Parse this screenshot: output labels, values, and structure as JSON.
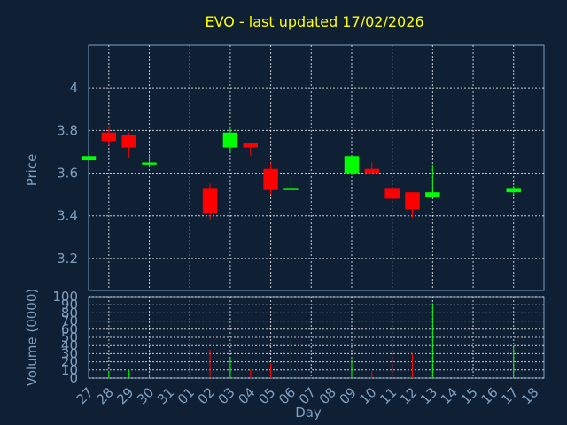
{
  "chart_data": [
    {
      "type": "candlestick",
      "title": "EVO - last updated 17/02/2026",
      "ylabel": "Price",
      "ylim": [
        3.05,
        4.2
      ],
      "yticks": [
        "3.2",
        "3.4",
        "3.6",
        "3.8",
        "4"
      ],
      "grid": true,
      "candles": [
        {
          "day": "27",
          "open": 3.66,
          "high": 3.68,
          "low": 3.66,
          "close": 3.68
        },
        {
          "day": "28",
          "open": 3.79,
          "high": 3.82,
          "low": 3.73,
          "close": 3.75
        },
        {
          "day": "29",
          "open": 3.78,
          "high": 3.79,
          "low": 3.67,
          "close": 3.72
        },
        {
          "day": "30",
          "open": 3.64,
          "high": 3.69,
          "low": 3.63,
          "close": 3.65
        },
        {
          "day": "02",
          "open": 3.53,
          "high": 3.55,
          "low": 3.38,
          "close": 3.41
        },
        {
          "day": "03",
          "open": 3.72,
          "high": 3.82,
          "low": 3.7,
          "close": 3.79
        },
        {
          "day": "04",
          "open": 3.74,
          "high": 3.74,
          "low": 3.68,
          "close": 3.72
        },
        {
          "day": "05",
          "open": 3.62,
          "high": 3.65,
          "low": 3.5,
          "close": 3.52
        },
        {
          "day": "06",
          "open": 3.52,
          "high": 3.58,
          "low": 3.52,
          "close": 3.53
        },
        {
          "day": "09",
          "open": 3.6,
          "high": 3.68,
          "low": 3.59,
          "close": 3.68
        },
        {
          "day": "10",
          "open": 3.62,
          "high": 3.65,
          "low": 3.6,
          "close": 3.6
        },
        {
          "day": "11",
          "open": 3.53,
          "high": 3.53,
          "low": 3.47,
          "close": 3.48
        },
        {
          "day": "12",
          "open": 3.51,
          "high": 3.51,
          "low": 3.39,
          "close": 3.43
        },
        {
          "day": "13",
          "open": 3.49,
          "high": 3.64,
          "low": 3.49,
          "close": 3.51
        },
        {
          "day": "17",
          "open": 3.51,
          "high": 3.54,
          "low": 3.5,
          "close": 3.53
        }
      ]
    },
    {
      "type": "bar",
      "xlabel": "Day",
      "ylabel": "Volume (0000)",
      "ylim": [
        0,
        100
      ],
      "yticks": [
        "0",
        "10",
        "20",
        "30",
        "40",
        "50",
        "60",
        "70",
        "80",
        "90",
        "100"
      ],
      "categories": [
        "27",
        "28",
        "29",
        "30",
        "31",
        "01",
        "02",
        "03",
        "04",
        "05",
        "06",
        "07",
        "08",
        "09",
        "10",
        "11",
        "12",
        "13",
        "14",
        "15",
        "16",
        "17",
        "18"
      ],
      "bars": [
        {
          "day": "28",
          "value": 8,
          "direction": "up"
        },
        {
          "day": "29",
          "value": 10,
          "direction": "up"
        },
        {
          "day": "30",
          "value": 5,
          "direction": "up"
        },
        {
          "day": "02",
          "value": 35,
          "direction": "down"
        },
        {
          "day": "03",
          "value": 25,
          "direction": "up"
        },
        {
          "day": "04",
          "value": 10,
          "direction": "down"
        },
        {
          "day": "05",
          "value": 18,
          "direction": "down"
        },
        {
          "day": "06",
          "value": 48,
          "direction": "up"
        },
        {
          "day": "09",
          "value": 22,
          "direction": "up"
        },
        {
          "day": "10",
          "value": 8,
          "direction": "down"
        },
        {
          "day": "11",
          "value": 28,
          "direction": "down"
        },
        {
          "day": "12",
          "value": 30,
          "direction": "down"
        },
        {
          "day": "13",
          "value": 92,
          "direction": "up"
        },
        {
          "day": "17",
          "value": 40,
          "direction": "up"
        }
      ]
    }
  ],
  "colors": {
    "up": "#00ff00",
    "down": "#ff0000",
    "title": "#ffff00",
    "axis": "#7f9fbf",
    "background": "#0f2035"
  }
}
